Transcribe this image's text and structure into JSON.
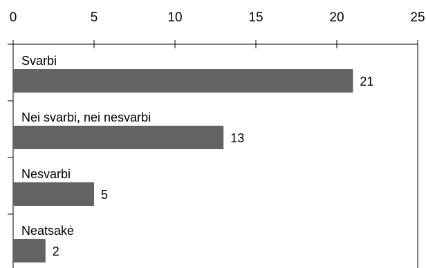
{
  "chart_data": {
    "type": "bar",
    "orientation": "horizontal",
    "categories": [
      "Svarbi",
      "Nei svarbi, nei nesvarbi",
      "Nesvarbi",
      "Neatsakė"
    ],
    "values": [
      21,
      13,
      5,
      2
    ],
    "xlim": [
      0,
      25
    ],
    "x_ticks": [
      0,
      5,
      10,
      15,
      20,
      25
    ],
    "x_axis_position": "top",
    "grid": false,
    "legend": "none",
    "bar_color": "#636366"
  }
}
